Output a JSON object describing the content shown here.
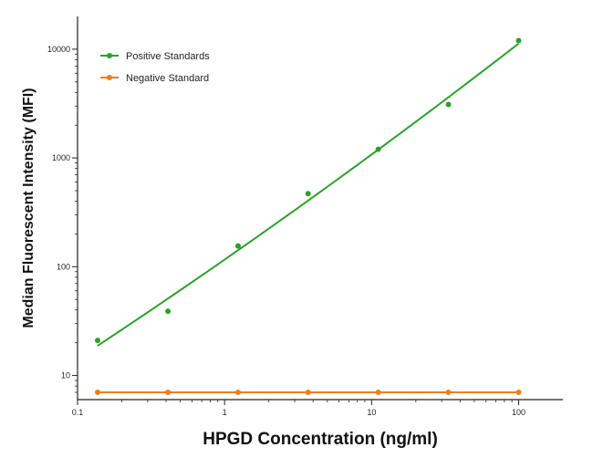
{
  "chart_data": {
    "type": "scatter",
    "xlabel": "HPGD Concentration (ng/ml)",
    "ylabel": "Median  Fluorescent Intensity  (MFI)",
    "x_scale": "log",
    "y_scale": "log",
    "xlim": [
      0.1,
      200
    ],
    "ylim": [
      6,
      20000
    ],
    "x_ticks": [
      0.1,
      1,
      10,
      100
    ],
    "x_tick_labels": [
      "0.1",
      "1",
      "10",
      "100"
    ],
    "y_ticks": [
      10,
      100,
      1000,
      10000
    ],
    "y_tick_labels": [
      "10",
      "100",
      "1000",
      "10000"
    ],
    "grid": false,
    "legend_position": "top-left",
    "series": [
      {
        "name": "Positive Standards",
        "color": "#2ca02c",
        "x": [
          0.137,
          0.412,
          1.235,
          3.7,
          11.1,
          33.3,
          100
        ],
        "y": [
          21,
          39,
          155,
          470,
          1200,
          3100,
          12000
        ],
        "fit_line": true
      },
      {
        "name": "Negative Standard",
        "color": "#f07d1a",
        "x": [
          0.137,
          0.412,
          1.235,
          3.7,
          11.1,
          33.3,
          100
        ],
        "y": [
          7,
          7,
          7,
          7,
          7,
          7,
          7
        ],
        "fit_line": true
      }
    ]
  }
}
